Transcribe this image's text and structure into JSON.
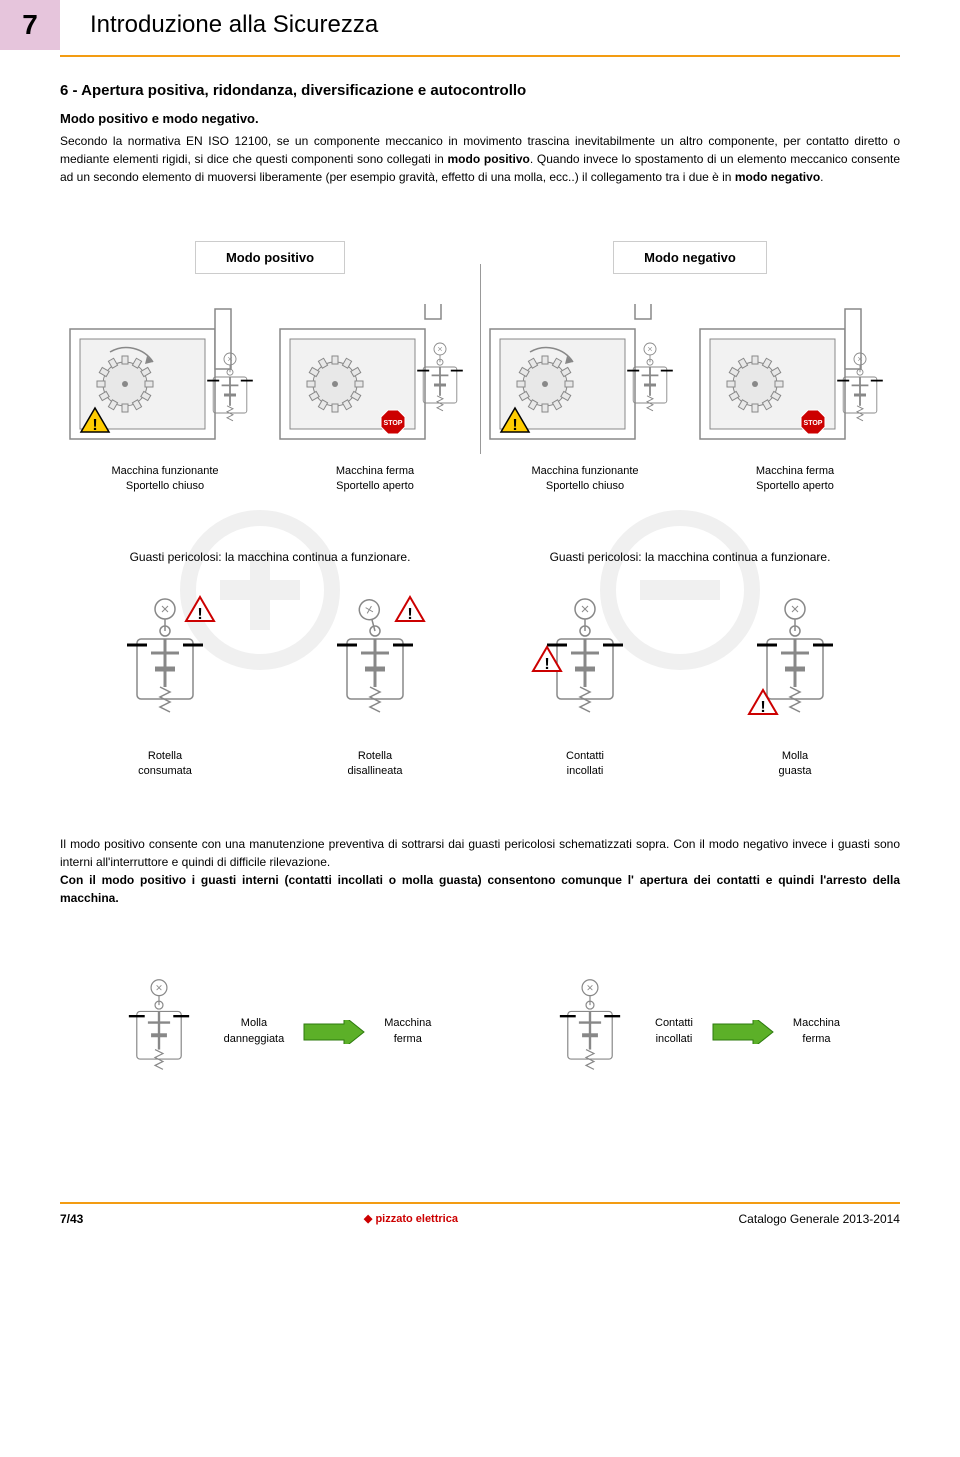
{
  "chapter_number": "7",
  "chapter_title": "Introduzione alla Sicurezza",
  "section_heading": "6 - Apertura positiva, ridondanza, diversificazione e autocontrollo",
  "subheading": "Modo positivo e modo negativo.",
  "paragraph_html": "Secondo la normativa EN ISO 12100, se un componente meccanico in movimento trascina inevitabilmente un altro componente, per contatto diretto o mediante elementi rigidi, si dice che questi componenti sono collegati in <b>modo positivo</b>. Quando invece lo spostamento di un elemento meccanico consente ad un secondo elemento di muoversi liberamente (per esempio gravità, effetto di una molla, ecc..) il collegamento tra i due è in <b>modo negativo</b>.",
  "mode_positive": "Modo positivo",
  "mode_negative": "Modo negativo",
  "captions": {
    "running_closed_l1": "Macchina funzionante",
    "running_closed_l2": "Sportello chiuso",
    "stopped_open_l1": "Macchina ferma",
    "stopped_open_l2": "Sportello aperto"
  },
  "fault_text": "Guasti pericolosi: la macchina continua a funzionare.",
  "switch_captions": {
    "rotella_consumata_l1": "Rotella",
    "rotella_consumata_l2": "consumata",
    "rotella_disallineata_l1": "Rotella",
    "rotella_disallineata_l2": "disallineata",
    "contatti_incollati_l1": "Contatti",
    "contatti_incollati_l2": "incollati",
    "molla_guasta_l1": "Molla",
    "molla_guasta_l2": "guasta"
  },
  "conclusion_html": "Il modo positivo consente con una manutenzione preventiva di sottrarsi dai guasti pericolosi schematizzati sopra. Con il modo negativo invece i guasti sono interni all'interruttore e quindi di difficile rilevazione.<br><b>Con il modo positivo i guasti interni (contatti incollati o molla guasta) consentono comunque l' apertura dei contatti e quindi l'arresto della macchina.</b>",
  "result": {
    "left_l1": "Molla",
    "left_l2": "danneggiata",
    "left_out_l1": "Macchina",
    "left_out_l2": "ferma",
    "right_l1": "Contatti",
    "right_l2": "incollati",
    "right_out_l1": "Macchina",
    "right_out_l2": "ferma"
  },
  "footer": {
    "page": "7/43",
    "logo": "pizzato elettrica",
    "catalog": "Catalogo Generale 2013-2014"
  },
  "colors": {
    "tab_bg": "#e6c5dc",
    "rule": "#f39c12",
    "arrow": "#5cb028",
    "warning_border": "#cc0000",
    "stop_red": "#cc0000",
    "warning_yellow": "#ffcc00",
    "diagram_stroke": "#888888",
    "diagram_fill": "#e8e8e8"
  }
}
